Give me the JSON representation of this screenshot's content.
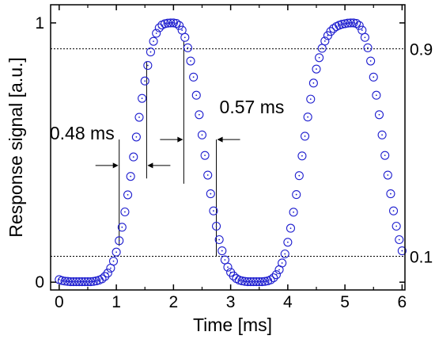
{
  "chart_data": {
    "type": "scatter",
    "xlabel": "Time [ms]",
    "ylabel": "Response signal [a.u.]",
    "xlim": [
      -0.15,
      6.05
    ],
    "ylim": [
      -0.03,
      1.07
    ],
    "xticks": [
      0,
      1,
      2,
      3,
      4,
      5,
      6
    ],
    "yticks": [
      {
        "value": 0,
        "label": "0"
      },
      {
        "value": 1,
        "label": "1"
      }
    ],
    "x_minor_step": 0.5,
    "marker": "open circle",
    "marker_color": "#1f1fcf",
    "reference_lines": [
      {
        "value": 0.9,
        "label": "0.9",
        "style": "dotted"
      },
      {
        "value": 0.1,
        "label": "0.1",
        "style": "dotted"
      }
    ],
    "annotations": [
      {
        "text": "0.48 ms",
        "from_x": 1.05,
        "to_x": 1.53,
        "y": 0.45,
        "bar_ys": [
          [
            0.14,
            0.55
          ],
          [
            0.4,
            0.85
          ]
        ]
      },
      {
        "text": "0.57 ms",
        "from_x": 2.18,
        "to_x": 2.75,
        "y": 0.55,
        "bar_ys": [
          [
            0.38,
            0.93
          ],
          [
            0.1,
            0.55
          ]
        ]
      }
    ],
    "x": [
      0.0,
      0.05,
      0.1,
      0.15,
      0.2,
      0.25,
      0.3,
      0.35,
      0.4,
      0.45,
      0.5,
      0.55,
      0.6,
      0.65,
      0.7,
      0.75,
      0.8,
      0.85,
      0.9,
      0.95,
      1.0,
      1.05,
      1.1,
      1.15,
      1.2,
      1.25,
      1.3,
      1.35,
      1.4,
      1.45,
      1.5,
      1.55,
      1.6,
      1.65,
      1.7,
      1.75,
      1.8,
      1.85,
      1.9,
      1.95,
      2.0,
      2.05,
      2.1,
      2.15,
      2.2,
      2.25,
      2.3,
      2.35,
      2.4,
      2.45,
      2.5,
      2.55,
      2.6,
      2.65,
      2.7,
      2.75,
      2.8,
      2.85,
      2.9,
      2.95,
      3.0,
      3.05,
      3.1,
      3.15,
      3.2,
      3.25,
      3.3,
      3.35,
      3.4,
      3.45,
      3.5,
      3.55,
      3.6,
      3.65,
      3.7,
      3.75,
      3.8,
      3.85,
      3.9,
      3.95,
      4.0,
      4.05,
      4.1,
      4.15,
      4.2,
      4.25,
      4.3,
      4.35,
      4.4,
      4.45,
      4.5,
      4.55,
      4.6,
      4.65,
      4.7,
      4.75,
      4.8,
      4.85,
      4.9,
      4.95,
      5.0,
      5.05,
      5.1,
      5.15,
      5.2,
      5.25,
      5.3,
      5.35,
      5.4,
      5.45,
      5.5,
      5.55,
      5.6,
      5.65,
      5.7,
      5.75,
      5.8,
      5.85,
      5.9,
      5.95,
      6.0
    ],
    "y": [
      0.01,
      0.006,
      0.004,
      0.003,
      0.002,
      0.002,
      0.002,
      0.002,
      0.002,
      0.002,
      0.002,
      0.002,
      0.003,
      0.005,
      0.008,
      0.013,
      0.022,
      0.035,
      0.054,
      0.081,
      0.116,
      0.16,
      0.212,
      0.271,
      0.337,
      0.408,
      0.483,
      0.56,
      0.636,
      0.709,
      0.776,
      0.836,
      0.888,
      0.929,
      0.96,
      0.981,
      0.992,
      0.997,
      0.999,
      1.0,
      1.0,
      0.998,
      0.99,
      0.972,
      0.944,
      0.904,
      0.853,
      0.791,
      0.721,
      0.646,
      0.568,
      0.489,
      0.413,
      0.341,
      0.275,
      0.216,
      0.164,
      0.121,
      0.086,
      0.058,
      0.038,
      0.024,
      0.014,
      0.008,
      0.005,
      0.003,
      0.002,
      0.002,
      0.002,
      0.002,
      0.002,
      0.002,
      0.003,
      0.005,
      0.009,
      0.017,
      0.029,
      0.048,
      0.074,
      0.109,
      0.154,
      0.208,
      0.27,
      0.338,
      0.411,
      0.487,
      0.563,
      0.637,
      0.706,
      0.768,
      0.822,
      0.866,
      0.902,
      0.93,
      0.951,
      0.967,
      0.978,
      0.986,
      0.991,
      0.995,
      0.997,
      0.999,
      1.0,
      1.0,
      0.998,
      0.99,
      0.972,
      0.944,
      0.904,
      0.853,
      0.791,
      0.721,
      0.646,
      0.568,
      0.489,
      0.413,
      0.341,
      0.275,
      0.216,
      0.164,
      0.121
    ]
  }
}
